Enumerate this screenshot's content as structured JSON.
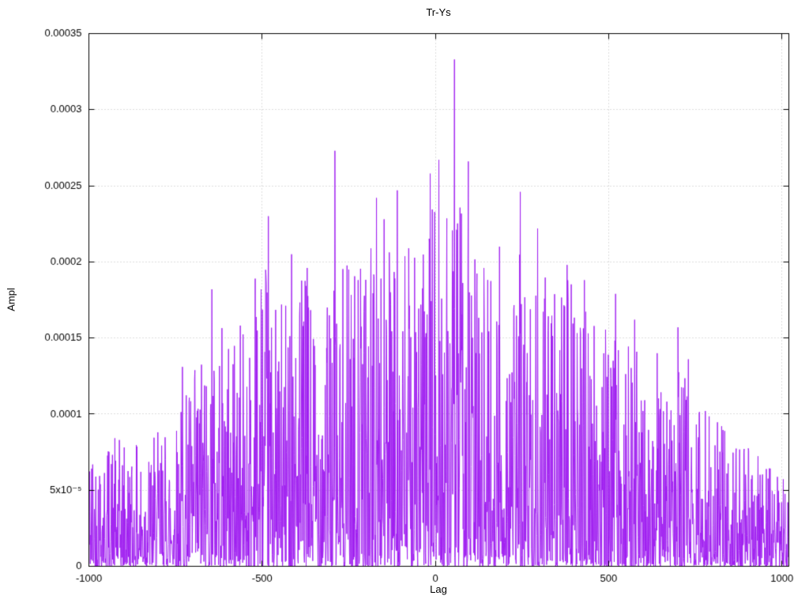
{
  "chart_data": {
    "type": "line",
    "title": "Tr-Ys",
    "xlabel": "Lag",
    "ylabel": "Ampl",
    "xlim": [
      -1000,
      1020
    ],
    "ylim": [
      0,
      0.00035
    ],
    "grid": true,
    "legend": "none",
    "line_color": "#a020f0",
    "grid_color": "#b8b8b8",
    "axis_color": "#000000",
    "x_ticks": [
      {
        "value": -1000,
        "label": "-1000"
      },
      {
        "value": -500,
        "label": "-500"
      },
      {
        "value": 0,
        "label": "0"
      },
      {
        "value": 500,
        "label": "500"
      },
      {
        "value": 1000,
        "label": "1000"
      }
    ],
    "y_ticks": [
      {
        "value": 0,
        "label": "0"
      },
      {
        "value": 5e-05,
        "label": "5x10⁻⁵"
      },
      {
        "value": 0.0001,
        "label": "0.0001"
      },
      {
        "value": 0.00015,
        "label": "0.00015"
      },
      {
        "value": 0.0002,
        "label": "0.0002"
      },
      {
        "value": 0.00025,
        "label": "0.00025"
      },
      {
        "value": 0.0003,
        "label": "0.0003"
      },
      {
        "value": 0.00035,
        "label": "0.00035"
      }
    ],
    "n_points": 2021,
    "x_start": -1000,
    "x_step": 1,
    "seed": 42,
    "noise_exponent": 2.3,
    "envelope": [
      [
        -1000,
        9e-05
      ],
      [
        -850,
        8e-05
      ],
      [
        -750,
        0.0001
      ],
      [
        -700,
        0.00013
      ],
      [
        -650,
        0.00016
      ],
      [
        -550,
        0.00016
      ],
      [
        -500,
        0.00021
      ],
      [
        -450,
        0.00017
      ],
      [
        -400,
        0.0002
      ],
      [
        -350,
        0.00019
      ],
      [
        -300,
        0.00019
      ],
      [
        -250,
        0.0002
      ],
      [
        -200,
        0.00021
      ],
      [
        -150,
        0.00022
      ],
      [
        -100,
        0.00021
      ],
      [
        -50,
        0.00022
      ],
      [
        0,
        0.00024
      ],
      [
        50,
        0.00024
      ],
      [
        100,
        0.00023
      ],
      [
        150,
        0.0002
      ],
      [
        200,
        0.00019
      ],
      [
        250,
        0.00021
      ],
      [
        300,
        0.00019
      ],
      [
        350,
        0.00019
      ],
      [
        400,
        0.00019
      ],
      [
        450,
        0.00016
      ],
      [
        500,
        0.00016
      ],
      [
        550,
        0.00015
      ],
      [
        600,
        0.00014
      ],
      [
        650,
        0.00013
      ],
      [
        700,
        0.00013
      ],
      [
        750,
        0.00012
      ],
      [
        800,
        0.0001
      ],
      [
        850,
        9e-05
      ],
      [
        900,
        8e-05
      ],
      [
        950,
        7e-05
      ],
      [
        1000,
        6e-05
      ],
      [
        1020,
        6e-05
      ]
    ],
    "notable_peaks": [
      [
        -730,
        0.000131
      ],
      [
        -645,
        0.000182
      ],
      [
        -520,
        0.000189
      ],
      [
        -482,
        0.00023
      ],
      [
        -415,
        0.000205
      ],
      [
        -370,
        0.000196
      ],
      [
        -290,
        0.000273
      ],
      [
        -250,
        0.000195
      ],
      [
        -170,
        0.000242
      ],
      [
        -148,
        0.000228
      ],
      [
        -110,
        0.000247
      ],
      [
        -15,
        0.000258
      ],
      [
        10,
        0.000267
      ],
      [
        55,
        0.000333
      ],
      [
        95,
        0.000266
      ],
      [
        140,
        0.000196
      ],
      [
        185,
        0.00021
      ],
      [
        245,
        0.000246
      ],
      [
        295,
        0.000222
      ],
      [
        380,
        0.000198
      ],
      [
        430,
        0.000188
      ],
      [
        520,
        0.000179
      ],
      [
        575,
        0.000162
      ],
      [
        640,
        0.00014
      ],
      [
        700,
        0.000157
      ],
      [
        730,
        0.000136
      ]
    ]
  }
}
